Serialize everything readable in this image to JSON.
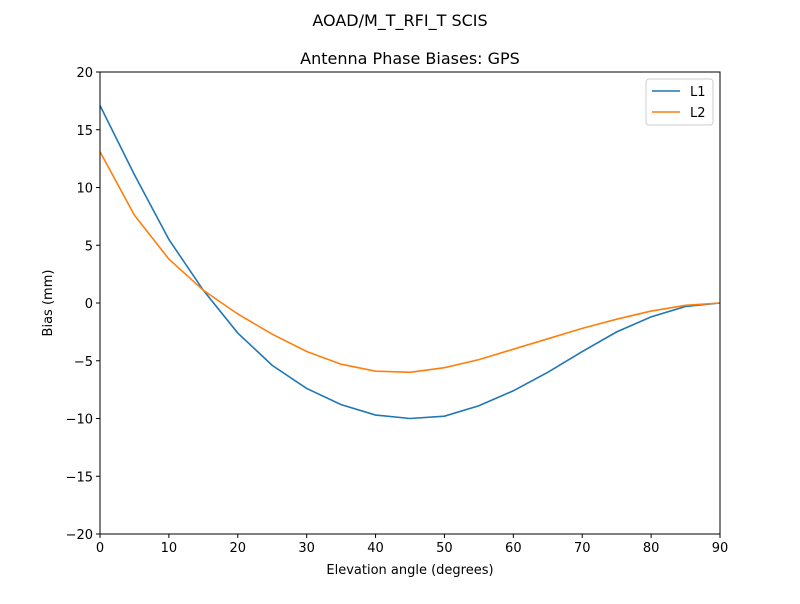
{
  "chart_data": {
    "type": "line",
    "suptitle": "AOAD/M_T_RFI_T  SCIS",
    "title": "Antenna Phase Biases: GPS",
    "xlabel": "Elevation angle (degrees)",
    "ylabel": "Bias (mm)",
    "xlim": [
      0,
      90
    ],
    "ylim": [
      -20,
      20
    ],
    "xticks": [
      0,
      10,
      20,
      30,
      40,
      50,
      60,
      70,
      80,
      90
    ],
    "yticks": [
      -20,
      -15,
      -10,
      -5,
      0,
      5,
      10,
      15,
      20
    ],
    "grid": false,
    "legend_position": "top-right",
    "x": [
      0,
      5,
      10,
      15,
      20,
      25,
      30,
      35,
      40,
      45,
      50,
      55,
      60,
      65,
      70,
      75,
      80,
      85,
      90
    ],
    "series": [
      {
        "name": "L1",
        "color": "#1f77b4",
        "values": [
          17.1,
          11.1,
          5.5,
          1.1,
          -2.6,
          -5.4,
          -7.4,
          -8.8,
          -9.7,
          -10.0,
          -9.8,
          -8.9,
          -7.6,
          -6.0,
          -4.2,
          -2.5,
          -1.2,
          -0.3,
          0.0
        ]
      },
      {
        "name": "L2",
        "color": "#ff7f0e",
        "values": [
          13.1,
          7.6,
          3.8,
          1.1,
          -0.95,
          -2.7,
          -4.2,
          -5.3,
          -5.9,
          -6.0,
          -5.6,
          -4.9,
          -4.0,
          -3.1,
          -2.2,
          -1.4,
          -0.7,
          -0.2,
          0.0
        ]
      }
    ]
  }
}
